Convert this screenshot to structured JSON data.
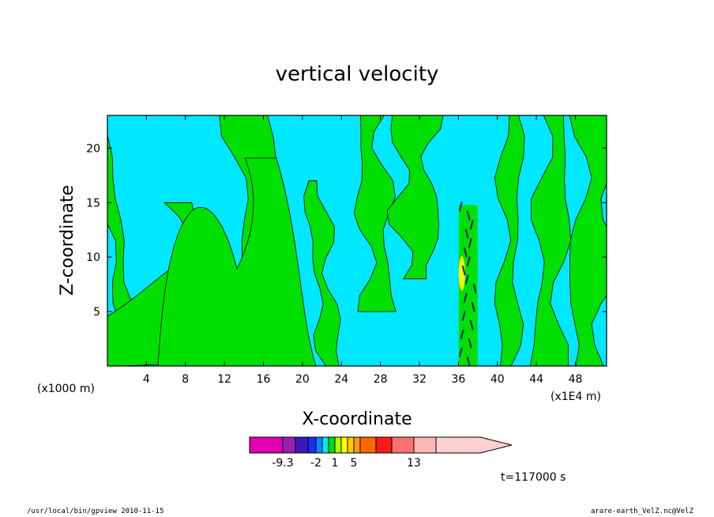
{
  "chart_data": {
    "type": "heatmap",
    "title": "vertical velocity",
    "xlabel": "X-coordinate",
    "ylabel": "Z-coordinate",
    "x_unit_left": "(x1000 m)",
    "x_unit_right": "(x1E4 m)",
    "xlim": [
      0,
      51.2
    ],
    "ylim": [
      0,
      23
    ],
    "x_ticks": [
      4,
      8,
      12,
      16,
      20,
      24,
      28,
      32,
      36,
      40,
      44,
      48
    ],
    "y_ticks": [
      5,
      10,
      15,
      20
    ],
    "time_label": "t=117000 s",
    "colorbar": {
      "colors": [
        "#e000b0",
        "#9a1fb0",
        "#3a1ab8",
        "#1a2cf0",
        "#0a86ff",
        "#00e8ff",
        "#00e000",
        "#a8ff00",
        "#ffff00",
        "#ffcc00",
        "#ff9900",
        "#ff6600",
        "#ff1a1a",
        "#ff7070",
        "#ffb8b8",
        "#ffd0d0"
      ],
      "tick_labels": [
        "-9.3",
        "-2",
        "1",
        "5",
        "13"
      ],
      "tick_bins": [
        1,
        4,
        7,
        10,
        14
      ]
    },
    "field_colors": {
      "background": "#00e8ff",
      "positive": "#00e000",
      "strong_up": "#ffff00",
      "strong_down": "#1a1a7a"
    },
    "features": [
      {
        "kind": "updraft_band",
        "x": 3,
        "z_range": [
          0,
          23
        ]
      },
      {
        "kind": "updraft_band",
        "x": 11,
        "z_range": [
          0,
          15
        ]
      },
      {
        "kind": "updraft_band",
        "x": 17,
        "z_range": [
          0,
          23
        ]
      },
      {
        "kind": "updraft_band",
        "x": 23,
        "z_range": [
          0,
          17
        ]
      },
      {
        "kind": "updraft_band",
        "x": 28,
        "z_range": [
          5,
          23
        ]
      },
      {
        "kind": "updraft_band",
        "x": 32,
        "z_range": [
          8,
          23
        ]
      },
      {
        "kind": "convective_core",
        "x": 37,
        "z_range": [
          0,
          15.5
        ]
      },
      {
        "kind": "updraft_band",
        "x": 41,
        "z_range": [
          0,
          23
        ]
      },
      {
        "kind": "updraft_band",
        "x": 45,
        "z_range": [
          0,
          23
        ]
      },
      {
        "kind": "updraft_band",
        "x": 49,
        "z_range": [
          0,
          23
        ]
      }
    ]
  },
  "footer": {
    "left": "/usr/local/bin/gpview   2010-11-15",
    "right": "arare-earth_VelZ.nc@VelZ"
  }
}
